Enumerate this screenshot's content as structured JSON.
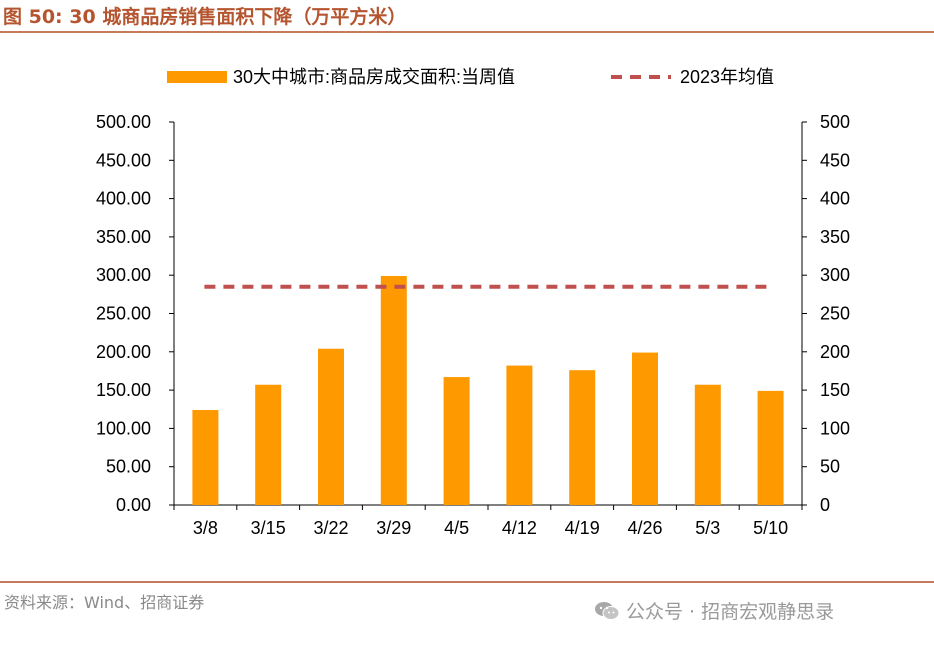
{
  "figure": {
    "title": "图 50:  30 城商品房销售面积下降（万平方米）",
    "source": "资料来源：Wind、招商证券",
    "watermark": "公众号 · 招商宏观静思录"
  },
  "colors": {
    "bar": "#ff9900",
    "avg_line": "#c0504d",
    "title": "#b5552f",
    "rule": "#c8795a"
  },
  "chart_data": {
    "type": "bar",
    "categories": [
      "3/8",
      "3/15",
      "3/22",
      "3/29",
      "4/5",
      "4/12",
      "4/19",
      "4/26",
      "5/3",
      "5/10"
    ],
    "series": [
      {
        "name": "30大中城市:商品房成交面积:当周值",
        "type": "bar",
        "values": [
          124,
          157,
          204,
          299,
          167,
          182,
          176,
          199,
          157,
          149
        ]
      },
      {
        "name": "2023年均值",
        "type": "line",
        "style": "dashed",
        "values": [
          285,
          285,
          285,
          285,
          285,
          285,
          285,
          285,
          285,
          285
        ]
      }
    ],
    "ylim": [
      0,
      500
    ],
    "y_ticks_left": [
      "0.00",
      "50.00",
      "100.00",
      "150.00",
      "200.00",
      "250.00",
      "300.00",
      "350.00",
      "400.00",
      "450.00",
      "500.00"
    ],
    "y_ticks_right": [
      "0",
      "50",
      "100",
      "150",
      "200",
      "250",
      "300",
      "350",
      "400",
      "450",
      "500"
    ],
    "legend_position": "top",
    "grid": false
  }
}
